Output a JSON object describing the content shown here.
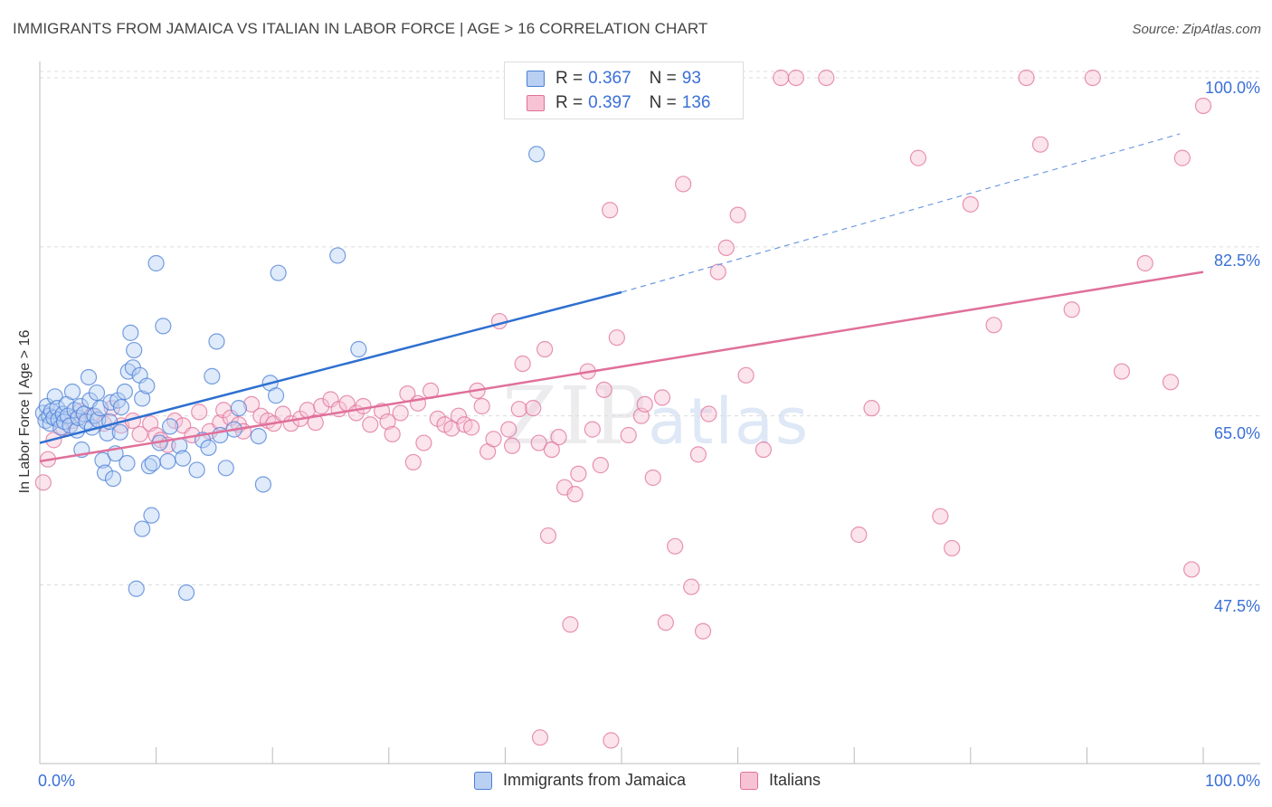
{
  "header": {
    "title": "IMMIGRANTS FROM JAMAICA VS ITALIAN IN LABOR FORCE | AGE > 16 CORRELATION CHART",
    "source": "Source: ZipAtlas.com"
  },
  "watermark": {
    "zip": "ZIP",
    "atlas": "atlas"
  },
  "legend": {
    "rows": [
      {
        "r_label": "R =",
        "r_value": "0.367",
        "n_label": "N =",
        "n_value": "93",
        "color": "#4a7fd6",
        "fill": "#b9d0f3"
      },
      {
        "r_label": "R =",
        "r_value": "0.397",
        "n_label": "N =",
        "n_value": "136",
        "color": "#e0709a",
        "fill": "#f7c3d4"
      }
    ]
  },
  "bottom_legend": {
    "items": [
      {
        "label": "Immigrants from Jamaica",
        "color": "#4a7fd6",
        "fill": "#b9d0f3"
      },
      {
        "label": "Italians",
        "color": "#e0709a",
        "fill": "#f7c3d4"
      }
    ]
  },
  "chart_data": {
    "type": "scatter",
    "title": "IMMIGRANTS FROM JAMAICA VS ITALIAN IN LABOR FORCE | AGE > 16 CORRELATION CHART",
    "xlabel": "",
    "ylabel": "In Labor Force | Age > 16",
    "xlim": [
      0,
      100
    ],
    "ylim": [
      29,
      101.5
    ],
    "x_tick_labels": [
      "0.0%",
      "100.0%"
    ],
    "y_ticks": [
      47.5,
      65.0,
      82.5,
      100.0
    ],
    "y_tick_labels": [
      "47.5%",
      "65.0%",
      "82.5%",
      "100.0%"
    ],
    "grid": true,
    "legend_position": "top-center",
    "series": [
      {
        "name": "Immigrants from Jamaica",
        "color": "#4a7fd6",
        "fill": "#b9d0f3",
        "trend": {
          "x0": 0,
          "y0": 62.2,
          "x1": 50,
          "y1": 77.8,
          "dash_to_x": 98,
          "dash_to_y": 94.2
        },
        "points": [
          [
            0.3,
            65.3
          ],
          [
            0.5,
            64.5
          ],
          [
            0.6,
            66.0
          ],
          [
            0.8,
            65.0
          ],
          [
            0.9,
            64.2
          ],
          [
            1.0,
            65.5
          ],
          [
            1.2,
            64.8
          ],
          [
            1.3,
            67.0
          ],
          [
            1.5,
            65.8
          ],
          [
            1.6,
            64.6
          ],
          [
            1.8,
            63.8
          ],
          [
            2.0,
            65.2
          ],
          [
            2.1,
            64.4
          ],
          [
            2.3,
            66.2
          ],
          [
            2.4,
            65.0
          ],
          [
            2.6,
            64.0
          ],
          [
            2.8,
            67.5
          ],
          [
            3.0,
            65.6
          ],
          [
            3.2,
            63.5
          ],
          [
            3.3,
            64.8
          ],
          [
            3.5,
            66.0
          ],
          [
            3.6,
            61.5
          ],
          [
            3.8,
            65.2
          ],
          [
            4.0,
            64.4
          ],
          [
            4.2,
            69.0
          ],
          [
            4.3,
            66.6
          ],
          [
            4.5,
            63.8
          ],
          [
            4.7,
            65.0
          ],
          [
            4.9,
            67.4
          ],
          [
            5.0,
            64.6
          ],
          [
            5.2,
            65.8
          ],
          [
            5.4,
            60.4
          ],
          [
            5.6,
            59.1
          ],
          [
            5.8,
            63.2
          ],
          [
            6.0,
            64.4
          ],
          [
            6.1,
            66.4
          ],
          [
            6.3,
            58.5
          ],
          [
            6.5,
            61.1
          ],
          [
            6.7,
            66.6
          ],
          [
            6.9,
            63.3
          ],
          [
            7.0,
            65.9
          ],
          [
            7.3,
            67.5
          ],
          [
            7.5,
            60.1
          ],
          [
            7.6,
            69.6
          ],
          [
            7.8,
            73.6
          ],
          [
            8.0,
            70.0
          ],
          [
            8.1,
            71.8
          ],
          [
            8.3,
            47.1
          ],
          [
            8.6,
            69.2
          ],
          [
            8.8,
            66.8
          ],
          [
            8.8,
            53.3
          ],
          [
            9.2,
            68.1
          ],
          [
            9.4,
            59.8
          ],
          [
            9.6,
            54.7
          ],
          [
            9.7,
            60.1
          ],
          [
            10.0,
            80.8
          ],
          [
            10.3,
            62.2
          ],
          [
            10.6,
            74.3
          ],
          [
            11.0,
            60.3
          ],
          [
            11.2,
            63.9
          ],
          [
            12.0,
            61.9
          ],
          [
            12.3,
            60.6
          ],
          [
            12.6,
            46.7
          ],
          [
            13.5,
            59.4
          ],
          [
            14.0,
            62.5
          ],
          [
            14.5,
            61.7
          ],
          [
            14.8,
            69.1
          ],
          [
            15.2,
            72.7
          ],
          [
            15.5,
            63.0
          ],
          [
            16.0,
            59.6
          ],
          [
            16.7,
            63.6
          ],
          [
            17.1,
            65.8
          ],
          [
            18.8,
            62.9
          ],
          [
            19.2,
            57.9
          ],
          [
            19.8,
            68.4
          ],
          [
            20.3,
            67.1
          ],
          [
            20.5,
            79.8
          ],
          [
            25.6,
            81.6
          ],
          [
            27.4,
            71.9
          ],
          [
            42.7,
            92.1
          ]
        ]
      },
      {
        "name": "Italians",
        "color": "#e0709a",
        "fill": "#f7c3d4",
        "trend": {
          "x0": 0,
          "y0": 60.3,
          "x1": 100,
          "y1": 79.9
        },
        "points": [
          [
            0.3,
            58.1
          ],
          [
            0.7,
            60.5
          ],
          [
            1.2,
            62.5
          ],
          [
            2.0,
            63.8
          ],
          [
            2.8,
            64.5
          ],
          [
            3.5,
            65.5
          ],
          [
            4.5,
            65.0
          ],
          [
            5.5,
            64.2
          ],
          [
            6.2,
            65.8
          ],
          [
            7.0,
            64.0
          ],
          [
            8.0,
            64.5
          ],
          [
            8.6,
            63.1
          ],
          [
            9.5,
            64.2
          ],
          [
            10.0,
            63.0
          ],
          [
            10.4,
            62.5
          ],
          [
            11.0,
            62.0
          ],
          [
            11.6,
            64.5
          ],
          [
            12.3,
            64.0
          ],
          [
            13.1,
            63.0
          ],
          [
            13.7,
            65.4
          ],
          [
            14.6,
            63.4
          ],
          [
            15.5,
            64.3
          ],
          [
            15.8,
            65.6
          ],
          [
            16.4,
            64.8
          ],
          [
            17.1,
            64.1
          ],
          [
            17.5,
            63.4
          ],
          [
            18.2,
            66.2
          ],
          [
            19.0,
            65.0
          ],
          [
            19.6,
            64.5
          ],
          [
            20.1,
            64.2
          ],
          [
            20.9,
            65.2
          ],
          [
            21.6,
            64.2
          ],
          [
            22.4,
            64.7
          ],
          [
            23.0,
            65.6
          ],
          [
            23.7,
            64.3
          ],
          [
            24.2,
            66.0
          ],
          [
            25.0,
            66.7
          ],
          [
            25.7,
            65.7
          ],
          [
            26.4,
            66.3
          ],
          [
            27.2,
            65.3
          ],
          [
            27.8,
            66.0
          ],
          [
            28.4,
            64.1
          ],
          [
            29.4,
            65.5
          ],
          [
            29.9,
            64.4
          ],
          [
            30.3,
            63.1
          ],
          [
            31.0,
            65.3
          ],
          [
            31.6,
            67.3
          ],
          [
            32.1,
            60.2
          ],
          [
            32.5,
            66.3
          ],
          [
            33.0,
            62.2
          ],
          [
            33.6,
            67.6
          ],
          [
            34.2,
            64.7
          ],
          [
            34.8,
            64.1
          ],
          [
            35.4,
            63.7
          ],
          [
            36.0,
            65.0
          ],
          [
            36.5,
            64.1
          ],
          [
            37.1,
            63.8
          ],
          [
            37.6,
            67.6
          ],
          [
            38.0,
            66.0
          ],
          [
            38.5,
            61.3
          ],
          [
            39.0,
            62.6
          ],
          [
            39.5,
            74.8
          ],
          [
            40.3,
            63.6
          ],
          [
            41.2,
            65.7
          ],
          [
            41.5,
            70.4
          ],
          [
            42.4,
            65.8
          ],
          [
            42.9,
            62.2
          ],
          [
            43.4,
            71.9
          ],
          [
            43.7,
            52.6
          ],
          [
            44.6,
            62.8
          ],
          [
            45.1,
            57.6
          ],
          [
            46.0,
            56.9
          ],
          [
            46.3,
            59.0
          ],
          [
            47.1,
            69.6
          ],
          [
            47.5,
            63.6
          ],
          [
            48.5,
            67.7
          ],
          [
            49.0,
            86.3
          ],
          [
            49.6,
            73.1
          ],
          [
            50.6,
            63.0
          ],
          [
            51.7,
            65.0
          ],
          [
            52.0,
            66.2
          ],
          [
            52.7,
            58.6
          ],
          [
            53.5,
            66.9
          ],
          [
            53.8,
            43.6
          ],
          [
            54.6,
            51.5
          ],
          [
            55.3,
            89.0
          ],
          [
            56.0,
            47.3
          ],
          [
            56.6,
            61.0
          ],
          [
            57.0,
            42.7
          ],
          [
            57.5,
            65.2
          ],
          [
            58.3,
            79.9
          ],
          [
            59.0,
            82.4
          ],
          [
            60.7,
            69.2
          ],
          [
            62.2,
            61.5
          ],
          [
            63.7,
            100.0
          ],
          [
            65.0,
            100.0
          ],
          [
            67.6,
            100.0
          ],
          [
            70.4,
            52.7
          ],
          [
            71.5,
            65.8
          ],
          [
            75.5,
            91.7
          ],
          [
            77.4,
            54.6
          ],
          [
            78.4,
            51.3
          ],
          [
            80.0,
            86.9
          ],
          [
            82.0,
            74.4
          ],
          [
            84.8,
            100.0
          ],
          [
            86.0,
            93.1
          ],
          [
            88.7,
            76.0
          ],
          [
            90.5,
            100.0
          ],
          [
            93.0,
            69.6
          ],
          [
            95.0,
            80.8
          ],
          [
            97.2,
            68.5
          ],
          [
            98.2,
            91.7
          ],
          [
            99.0,
            49.1
          ],
          [
            100.0,
            97.1
          ],
          [
            60.0,
            85.8
          ],
          [
            40.6,
            61.9
          ],
          [
            43.0,
            31.7
          ],
          [
            49.1,
            31.4
          ],
          [
            44.0,
            61.5
          ],
          [
            45.6,
            43.4
          ],
          [
            48.2,
            59.9
          ]
        ]
      }
    ]
  }
}
